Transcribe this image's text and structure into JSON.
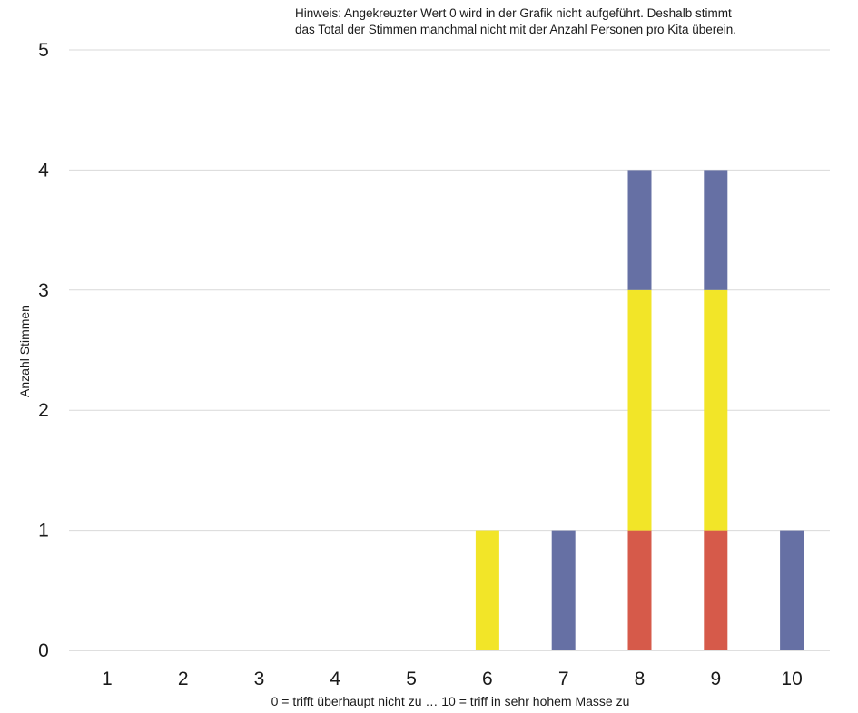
{
  "chart_data": {
    "type": "bar",
    "stacked": true,
    "categories": [
      "1",
      "2",
      "3",
      "4",
      "5",
      "6",
      "7",
      "8",
      "9",
      "10"
    ],
    "series": [
      {
        "color": "#d65a4a",
        "values": [
          0,
          0,
          0,
          0,
          0,
          0,
          0,
          1,
          1,
          0
        ]
      },
      {
        "color": "#f2e528",
        "values": [
          0,
          0,
          0,
          0,
          0,
          1,
          0,
          2,
          2,
          0
        ]
      },
      {
        "color": "#6670a4",
        "values": [
          0,
          0,
          0,
          0,
          0,
          0,
          1,
          1,
          1,
          1
        ]
      }
    ],
    "xlabel": "0 = trifft überhaupt nicht zu  … 10 = triff in sehr hohem Masse zu",
    "ylabel": "Anzahl Stimmen",
    "ylim": [
      0,
      5
    ],
    "yticks": [
      "0",
      "1",
      "2",
      "3",
      "4",
      "5"
    ],
    "grid": true,
    "note_lines": [
      "Hinweis: Angekreuzter Wert 0 wird in der Grafik nicht aufgeführt. Deshalb stimmt",
      "das Total der Stimmen manchmal nicht mit der Anzahl Personen pro Kita überein."
    ],
    "colors": {
      "grid": "#d9d9d9",
      "axis": "#bfbfbf"
    }
  }
}
